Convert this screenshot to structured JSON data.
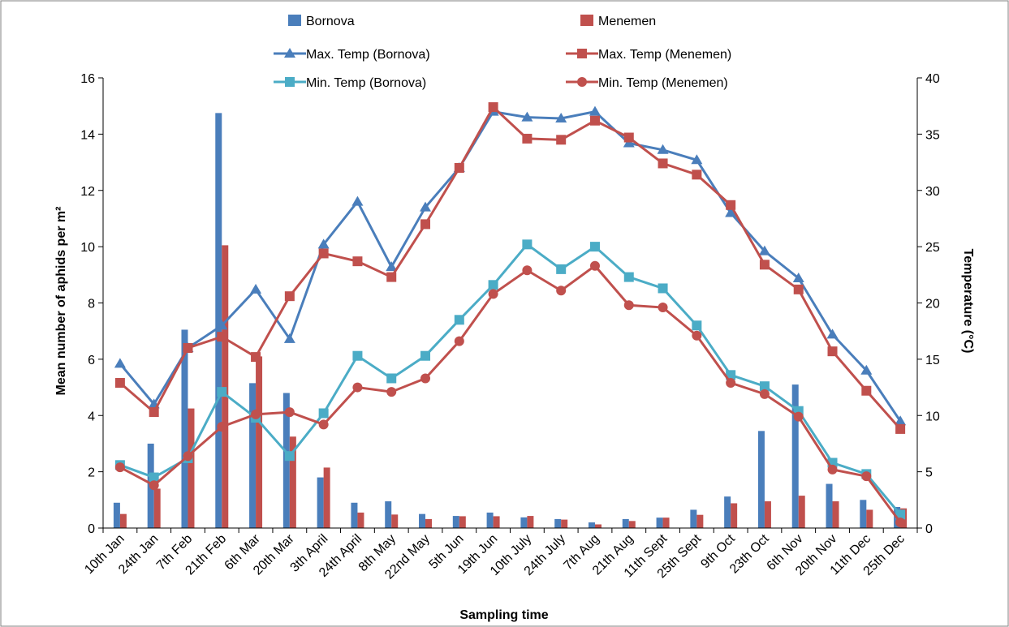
{
  "chart_data": {
    "type": "bar",
    "xlabel": "Sampling time",
    "ylabel": "Mean number of aphids per m²",
    "y2label": "Temperature (°C)",
    "ylim": [
      0,
      16
    ],
    "y2lim": [
      0,
      40
    ],
    "yticks": [
      "0",
      "2",
      "4",
      "6",
      "8",
      "10",
      "12",
      "14",
      "16"
    ],
    "y2ticks": [
      "0",
      "5",
      "10",
      "15",
      "20",
      "25",
      "30",
      "35",
      "40"
    ],
    "grid": false,
    "legend_position": "top",
    "categories": [
      "10th Jan",
      "24th Jan",
      "7th Feb",
      "21th Feb",
      "6th Mar",
      "20th Mar",
      "3th April",
      "24th April",
      "8th May",
      "22nd May",
      "5th Jun",
      "19th Jun",
      "10th July",
      "24th July",
      "7th Aug",
      "21th Aug",
      "11th Sept",
      "25th Sept",
      "9th Oct",
      "23th Oct",
      "6th Nov",
      "20th Nov",
      "11th Dec",
      "25th Dec"
    ],
    "series": [
      {
        "name": "Bornova",
        "kind": "bar",
        "axis": "left",
        "color": "#4a7ebb",
        "values": [
          0.9,
          3.0,
          7.05,
          14.75,
          5.15,
          4.8,
          1.8,
          0.9,
          0.95,
          0.5,
          0.43,
          0.55,
          0.38,
          0.32,
          0.2,
          0.32,
          0.37,
          0.65,
          1.12,
          3.45,
          5.1,
          1.57,
          1.0,
          0.75
        ]
      },
      {
        "name": "Menemen",
        "kind": "bar",
        "axis": "left",
        "color": "#c0504d",
        "values": [
          0.5,
          1.4,
          4.25,
          10.05,
          6.1,
          3.25,
          2.15,
          0.55,
          0.48,
          0.32,
          0.42,
          0.42,
          0.43,
          0.3,
          0.13,
          0.25,
          0.37,
          0.47,
          0.88,
          0.95,
          1.15,
          0.95,
          0.65,
          0.7
        ]
      },
      {
        "name": "Max. Temp (Bornova)",
        "kind": "line",
        "axis": "right",
        "color": "#4a7ebb",
        "marker": "triangle",
        "values": [
          14.6,
          11.0,
          16.0,
          18.0,
          21.2,
          16.8,
          25.2,
          29.0,
          23.2,
          28.5,
          32.0,
          37.0,
          36.5,
          36.4,
          37.0,
          34.2,
          33.6,
          32.7,
          28.0,
          24.6,
          22.2,
          17.2,
          14.0,
          9.5
        ]
      },
      {
        "name": "Max. Temp (Menemen)",
        "kind": "line",
        "axis": "right",
        "color": "#c0504d",
        "marker": "square",
        "values": [
          12.9,
          10.3,
          16.0,
          17.0,
          15.2,
          20.6,
          24.4,
          23.7,
          22.3,
          27.0,
          32.0,
          37.4,
          34.6,
          34.5,
          36.2,
          34.7,
          32.4,
          31.4,
          28.7,
          23.4,
          21.2,
          15.7,
          12.2,
          8.8
        ]
      },
      {
        "name": "Min. Temp (Bornova)",
        "kind": "line",
        "axis": "right",
        "color": "#4bacc6",
        "marker": "square",
        "values": [
          5.6,
          4.5,
          6.2,
          12.1,
          9.8,
          6.4,
          10.2,
          15.3,
          13.3,
          15.3,
          18.5,
          21.6,
          25.2,
          23.0,
          25.0,
          22.3,
          21.3,
          18.0,
          13.6,
          12.6,
          10.4,
          5.8,
          4.8,
          1.2
        ]
      },
      {
        "name": "Min. Temp (Menemen)",
        "kind": "line",
        "axis": "right",
        "color": "#c0504d",
        "marker": "circle",
        "values": [
          5.4,
          3.8,
          6.4,
          9.0,
          10.1,
          10.3,
          9.2,
          12.5,
          12.1,
          13.3,
          16.6,
          20.8,
          22.9,
          21.1,
          23.3,
          19.8,
          19.6,
          17.1,
          12.9,
          11.9,
          9.9,
          5.2,
          4.6,
          0.5
        ]
      }
    ]
  }
}
